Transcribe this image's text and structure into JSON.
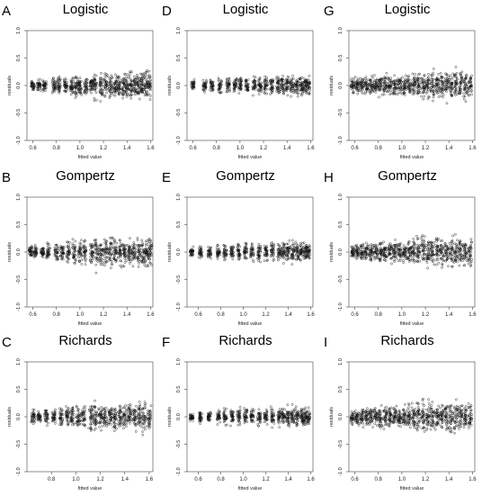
{
  "chart_data": [
    {
      "type": "scatter",
      "panel": "A",
      "title": "Logistic",
      "xlabel": "fitted value",
      "ylabel": "residuals",
      "xlim": [
        0.55,
        1.62
      ],
      "ylim": [
        -1.0,
        1.0
      ],
      "xticks": [
        "0.6",
        "0.8",
        "1.0",
        "1.2",
        "1.4",
        "1.6"
      ],
      "yticks": [
        "-1.0",
        "-0.5",
        "0.0",
        "0.5",
        "1.0"
      ],
      "columns": [
        0.6,
        0.65,
        0.7,
        0.78,
        0.82,
        0.88,
        0.93,
        0.97,
        1.0,
        1.05,
        1.1,
        1.13,
        1.18,
        1.22,
        1.26,
        1.3,
        1.33,
        1.37,
        1.4,
        1.43,
        1.47,
        1.5,
        1.53,
        1.56,
        1.59
      ],
      "spread": [
        0.15,
        0.15,
        0.15,
        0.2,
        0.2,
        0.2,
        0.25,
        0.25,
        0.25,
        0.25,
        0.2,
        0.35,
        0.35,
        0.35,
        0.3,
        0.3,
        0.3,
        0.3,
        0.3,
        0.3,
        0.3,
        0.3,
        0.3,
        0.35,
        0.3
      ]
    },
    {
      "type": "scatter",
      "panel": "B",
      "title": "Gompertz",
      "xlabel": "fitted value",
      "ylabel": "residuals",
      "xlim": [
        0.55,
        1.62
      ],
      "ylim": [
        -1.0,
        1.0
      ],
      "xticks": [
        "0.6",
        "0.8",
        "1.0",
        "1.2",
        "1.4",
        "1.6"
      ],
      "yticks": [
        "-1.0",
        "-0.5",
        "0.0",
        "0.5",
        "1.0"
      ],
      "columns": [
        0.58,
        0.62,
        0.68,
        0.73,
        0.8,
        0.85,
        0.9,
        0.95,
        1.0,
        1.04,
        1.1,
        1.14,
        1.18,
        1.22,
        1.26,
        1.3,
        1.34,
        1.38,
        1.42,
        1.46,
        1.5,
        1.54,
        1.57,
        1.6
      ],
      "spread": [
        0.15,
        0.15,
        0.15,
        0.2,
        0.2,
        0.2,
        0.25,
        0.25,
        0.25,
        0.25,
        0.3,
        0.4,
        0.35,
        0.35,
        0.35,
        0.35,
        0.3,
        0.3,
        0.3,
        0.3,
        0.35,
        0.35,
        0.35,
        0.3
      ]
    },
    {
      "type": "scatter",
      "panel": "C",
      "title": "Richards",
      "xlabel": "fitted value",
      "ylabel": "residuals",
      "xlim": [
        0.6,
        1.63
      ],
      "ylim": [
        -1.0,
        1.0
      ],
      "xticks": [
        "0.8",
        "1.0",
        "1.2",
        "1.4",
        "1.6"
      ],
      "yticks": [
        "-1.0",
        "-0.5",
        "0.0",
        "0.5",
        "1.0"
      ],
      "columns": [
        0.65,
        0.7,
        0.76,
        0.82,
        0.88,
        0.93,
        0.97,
        1.02,
        1.06,
        1.12,
        1.16,
        1.2,
        1.24,
        1.28,
        1.32,
        1.36,
        1.4,
        1.44,
        1.48,
        1.52,
        1.56,
        1.6
      ],
      "spread": [
        0.15,
        0.15,
        0.2,
        0.2,
        0.25,
        0.25,
        0.3,
        0.3,
        0.35,
        0.35,
        0.35,
        0.3,
        0.3,
        0.3,
        0.3,
        0.3,
        0.3,
        0.3,
        0.3,
        0.35,
        0.35,
        0.3
      ]
    },
    {
      "type": "scatter",
      "panel": "D",
      "title": "Logistic",
      "xlabel": "fitted value",
      "ylabel": "residuals",
      "xlim": [
        0.55,
        1.62
      ],
      "ylim": [
        -1.0,
        1.0
      ],
      "xticks": [
        "0.6",
        "0.8",
        "1.0",
        "1.2",
        "1.4",
        "1.6"
      ],
      "yticks": [
        "-1.0",
        "-0.5",
        "0.0",
        "0.5",
        "1.0"
      ],
      "columns": [
        0.6,
        0.7,
        0.76,
        0.83,
        0.9,
        0.96,
        1.0,
        1.06,
        1.12,
        1.17,
        1.22,
        1.27,
        1.32,
        1.36,
        1.4,
        1.44,
        1.48,
        1.52,
        1.55,
        1.58
      ],
      "spread": [
        0.12,
        0.15,
        0.15,
        0.18,
        0.2,
        0.2,
        0.2,
        0.2,
        0.2,
        0.2,
        0.22,
        0.22,
        0.22,
        0.25,
        0.25,
        0.25,
        0.25,
        0.22,
        0.2,
        0.2
      ]
    },
    {
      "type": "scatter",
      "panel": "E",
      "title": "Gompertz",
      "xlabel": "fitted value",
      "ylabel": "residuals",
      "xlim": [
        0.5,
        1.62
      ],
      "ylim": [
        -1.0,
        1.0
      ],
      "xticks": [
        "0.6",
        "0.8",
        "1.0",
        "1.2",
        "1.4",
        "1.6"
      ],
      "yticks": [
        "-1.0",
        "-0.5",
        "0.0",
        "0.5",
        "1.0"
      ],
      "columns": [
        0.54,
        0.62,
        0.7,
        0.78,
        0.84,
        0.9,
        0.96,
        1.02,
        1.08,
        1.14,
        1.2,
        1.26,
        1.32,
        1.36,
        1.4,
        1.44,
        1.48,
        1.52,
        1.55,
        1.58
      ],
      "spread": [
        0.12,
        0.15,
        0.15,
        0.18,
        0.2,
        0.2,
        0.2,
        0.22,
        0.22,
        0.22,
        0.22,
        0.25,
        0.25,
        0.25,
        0.25,
        0.25,
        0.25,
        0.22,
        0.22,
        0.2
      ]
    },
    {
      "type": "scatter",
      "panel": "F",
      "title": "Richards",
      "xlabel": "fitted value",
      "ylabel": "residuals",
      "xlim": [
        0.5,
        1.62
      ],
      "ylim": [
        -1.0,
        1.0
      ],
      "xticks": [
        "0.6",
        "0.8",
        "1.0",
        "1.2",
        "1.4",
        "1.6"
      ],
      "yticks": [
        "-1.0",
        "-0.5",
        "0.0",
        "0.5",
        "1.0"
      ],
      "columns": [
        0.54,
        0.62,
        0.7,
        0.78,
        0.84,
        0.9,
        0.96,
        1.02,
        1.08,
        1.14,
        1.2,
        1.26,
        1.32,
        1.36,
        1.4,
        1.44,
        1.48,
        1.52,
        1.55,
        1.58
      ],
      "spread": [
        0.12,
        0.15,
        0.15,
        0.18,
        0.2,
        0.2,
        0.2,
        0.22,
        0.22,
        0.22,
        0.22,
        0.25,
        0.25,
        0.25,
        0.25,
        0.25,
        0.25,
        0.22,
        0.22,
        0.2
      ]
    },
    {
      "type": "scatter",
      "panel": "G",
      "title": "Logistic",
      "xlabel": "fitted value",
      "ylabel": "residuals",
      "xlim": [
        0.55,
        1.62
      ],
      "ylim": [
        -1.0,
        1.0
      ],
      "xticks": [
        "0.6",
        "0.8",
        "1.0",
        "1.2",
        "1.4",
        "1.6"
      ],
      "yticks": [
        "-1.0",
        "-0.5",
        "0.0",
        "0.5",
        "1.0"
      ],
      "columns": [
        0.58,
        0.62,
        0.66,
        0.7,
        0.74,
        0.78,
        0.82,
        0.86,
        0.9,
        0.94,
        0.98,
        1.02,
        1.06,
        1.1,
        1.14,
        1.18,
        1.22,
        1.26,
        1.3,
        1.34,
        1.38,
        1.42,
        1.46,
        1.5,
        1.54,
        1.58
      ],
      "spread": [
        0.2,
        0.2,
        0.2,
        0.22,
        0.22,
        0.22,
        0.25,
        0.25,
        0.25,
        0.25,
        0.25,
        0.25,
        0.28,
        0.28,
        0.3,
        0.35,
        0.35,
        0.35,
        0.35,
        0.35,
        0.35,
        0.35,
        0.35,
        0.35,
        0.35,
        0.3
      ]
    },
    {
      "type": "scatter",
      "panel": "H",
      "title": "Gompertz",
      "xlabel": "fitted value",
      "ylabel": "residuals",
      "xlim": [
        0.55,
        1.62
      ],
      "ylim": [
        -1.0,
        1.0
      ],
      "xticks": [
        "0.6",
        "0.8",
        "1.0",
        "1.2",
        "1.4",
        "1.6"
      ],
      "yticks": [
        "-1.0",
        "-0.5",
        "0.0",
        "0.5",
        "1.0"
      ],
      "columns": [
        0.58,
        0.62,
        0.66,
        0.7,
        0.74,
        0.78,
        0.82,
        0.86,
        0.9,
        0.94,
        0.98,
        1.02,
        1.06,
        1.1,
        1.14,
        1.18,
        1.22,
        1.26,
        1.3,
        1.34,
        1.38,
        1.42,
        1.46,
        1.5,
        1.54,
        1.58
      ],
      "spread": [
        0.2,
        0.22,
        0.22,
        0.22,
        0.22,
        0.22,
        0.25,
        0.25,
        0.25,
        0.25,
        0.25,
        0.25,
        0.28,
        0.3,
        0.35,
        0.4,
        0.35,
        0.35,
        0.35,
        0.35,
        0.35,
        0.35,
        0.35,
        0.35,
        0.35,
        0.35
      ]
    },
    {
      "type": "scatter",
      "panel": "I",
      "title": "Richards",
      "xlabel": "fitted value",
      "ylabel": "residuals",
      "xlim": [
        0.55,
        1.62
      ],
      "ylim": [
        -1.0,
        1.0
      ],
      "xticks": [
        "0.6",
        "0.8",
        "1.0",
        "1.2",
        "1.4",
        "1.6"
      ],
      "yticks": [
        "-1.0",
        "-0.5",
        "0.0",
        "0.5",
        "1.0"
      ],
      "columns": [
        0.58,
        0.62,
        0.66,
        0.7,
        0.74,
        0.78,
        0.82,
        0.86,
        0.9,
        0.94,
        0.98,
        1.02,
        1.06,
        1.1,
        1.14,
        1.18,
        1.22,
        1.26,
        1.3,
        1.34,
        1.38,
        1.42,
        1.46,
        1.5,
        1.54,
        1.58
      ],
      "spread": [
        0.2,
        0.22,
        0.22,
        0.22,
        0.22,
        0.22,
        0.25,
        0.25,
        0.25,
        0.25,
        0.25,
        0.25,
        0.28,
        0.3,
        0.35,
        0.4,
        0.35,
        0.35,
        0.35,
        0.35,
        0.35,
        0.35,
        0.35,
        0.35,
        0.35,
        0.35
      ]
    }
  ]
}
